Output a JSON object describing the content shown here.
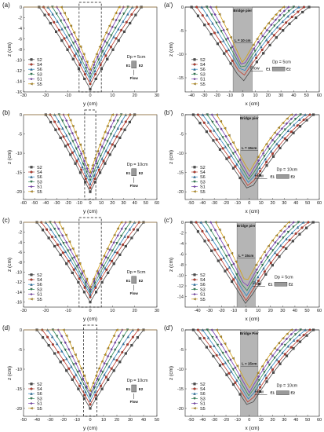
{
  "figure": {
    "series_names": [
      "S2",
      "S4",
      "S6",
      "S3",
      "S1",
      "S5"
    ],
    "series_colors": [
      "#4a4a4a",
      "#c0392b",
      "#2e86c1",
      "#2e8b57",
      "#7a3fb5",
      "#d4a017"
    ],
    "markers": [
      "square",
      "circle",
      "triangle-up",
      "triangle-down",
      "diamond",
      "triangle-left"
    ]
  },
  "chart_data": [
    {
      "panel_label": "(a)",
      "type": "line",
      "view": "front",
      "xlabel": "y (cm)",
      "ylabel": "z (cm)",
      "xlim": [
        -30,
        30
      ],
      "ylim": [
        -16,
        0
      ],
      "xticks": [
        -30,
        -20,
        -10,
        0,
        10,
        20,
        30
      ],
      "yticks": [
        -16,
        -14,
        -12,
        -10,
        -8,
        -6,
        -4,
        -2,
        0
      ],
      "max_depths": [
        15.5,
        14.5,
        13.8,
        13.2,
        12.5,
        11.8
      ],
      "half_widths": [
        23,
        21,
        19,
        17,
        15,
        13
      ],
      "dp_label": "Dp = 5cm",
      "flow_label": "Flow",
      "e_labels": [
        "E1",
        "E2"
      ]
    },
    {
      "panel_label": "(a')",
      "type": "line",
      "view": "side",
      "xlabel": "x (cm)",
      "ylabel": "z (cm)",
      "xlim": [
        -45,
        60
      ],
      "ylim": [
        -18,
        0
      ],
      "xticks": [
        -40,
        -30,
        -20,
        -10,
        0,
        10,
        20,
        30,
        40,
        50,
        60
      ],
      "yticks": [
        -15,
        -10,
        -5,
        0
      ],
      "max_depths": [
        16,
        15,
        14.2,
        13.5,
        12.8,
        12
      ],
      "upstream_lengths": [
        40,
        36,
        32,
        28,
        25,
        21
      ],
      "downstream_lengths": [
        52,
        48,
        44,
        40,
        36,
        32
      ],
      "pier_label": "Bridge pier",
      "l_label": "L = 10 cm",
      "dp_label": "Dp = 5cm",
      "flow_label": "Flow",
      "e_labels": [
        "E1",
        "E2"
      ]
    },
    {
      "panel_label": "(b)",
      "type": "line",
      "view": "front",
      "xlabel": "y (cm)",
      "ylabel": "z (cm)",
      "xlim": [
        -60,
        60
      ],
      "ylim": [
        -22,
        0
      ],
      "xticks": [
        -60,
        -50,
        -40,
        -30,
        -20,
        -10,
        0,
        10,
        20,
        30,
        40,
        50,
        60
      ],
      "yticks": [
        -20,
        -15,
        -10,
        -5,
        0
      ],
      "max_depths": [
        20,
        19,
        18,
        17,
        16,
        15
      ],
      "half_widths": [
        40,
        36,
        32,
        28,
        24,
        20
      ],
      "dp_label": "Dp = 10cm",
      "flow_label": "Flow",
      "e_labels": [
        "E1",
        "E2"
      ]
    },
    {
      "panel_label": "(b')",
      "type": "line",
      "view": "side",
      "xlabel": "x (cm)",
      "ylabel": "z (cm)",
      "xlim": [
        -55,
        60
      ],
      "ylim": [
        -22,
        0
      ],
      "xticks": [
        -50,
        -40,
        -30,
        -20,
        -10,
        0,
        10,
        20,
        30,
        40,
        50,
        60
      ],
      "yticks": [
        -20,
        -15,
        -10,
        -5,
        0
      ],
      "max_depths": [
        20,
        19,
        18,
        17,
        16,
        15
      ],
      "upstream_lengths": [
        48,
        44,
        40,
        36,
        32,
        28
      ],
      "downstream_lengths": [
        55,
        52,
        48,
        44,
        40,
        36
      ],
      "pier_label": "Bridge pier",
      "l_label": "L = 15cm",
      "dp_label": "Dp = 10cm",
      "flow_label": "Flow",
      "e_labels": [
        "E1",
        "E2"
      ]
    },
    {
      "panel_label": "(c)",
      "type": "line",
      "view": "front",
      "xlabel": "y (cm)",
      "ylabel": "z (cm)",
      "xlim": [
        -30,
        30
      ],
      "ylim": [
        -17,
        0
      ],
      "xticks": [
        -30,
        -20,
        -10,
        0,
        10,
        20,
        30
      ],
      "yticks": [
        -16,
        -14,
        -12,
        -10,
        -8,
        -6,
        -4,
        -2,
        0
      ],
      "max_depths": [
        16,
        15,
        14.5,
        14,
        13.5,
        13
      ],
      "half_widths": [
        24,
        22,
        20,
        18,
        16,
        14
      ],
      "dp_label": "Dp = 5cm",
      "flow_label": "Flow",
      "e_labels": [
        "E1",
        "E2"
      ]
    },
    {
      "panel_label": "(c')",
      "type": "line",
      "view": "side",
      "xlabel": "x (cm)",
      "ylabel": "z (cm)",
      "xlim": [
        -50,
        60
      ],
      "ylim": [
        -16,
        0
      ],
      "xticks": [
        -40,
        -30,
        -20,
        -10,
        0,
        10,
        20,
        30,
        40,
        50,
        60
      ],
      "yticks": [
        -14,
        -12,
        -10,
        -8,
        -6,
        -4,
        -2,
        0
      ],
      "max_depths": [
        15.5,
        14.8,
        14,
        13.2,
        12.5,
        11.5
      ],
      "upstream_lengths": [
        45,
        41,
        37,
        33,
        29,
        25
      ],
      "downstream_lengths": [
        55,
        51,
        47,
        43,
        39,
        35
      ],
      "pier_label": "Bridge pier",
      "l_label": "L = 15cm",
      "dp_label": "Dp = 5cm",
      "flow_label": "Flow",
      "e_labels": [
        "E1",
        "E2"
      ]
    },
    {
      "panel_label": "(d)",
      "type": "line",
      "view": "front",
      "xlabel": "y (cm)",
      "ylabel": "z (cm)",
      "xlim": [
        -50,
        50
      ],
      "ylim": [
        -22,
        0
      ],
      "xticks": [
        -50,
        -40,
        -30,
        -20,
        -10,
        0,
        10,
        20,
        30,
        40,
        50
      ],
      "yticks": [
        -20,
        -15,
        -10,
        -5,
        0
      ],
      "max_depths": [
        20,
        19,
        18,
        17,
        16.5,
        15.5
      ],
      "half_widths": [
        40,
        36,
        32,
        28,
        24,
        20
      ],
      "dp_label": "Dp = 10cm",
      "flow_label": "Flow",
      "e_labels": [
        "E1",
        "E2"
      ]
    },
    {
      "panel_label": "(d')",
      "type": "line",
      "view": "side",
      "xlabel": "x (cm)",
      "ylabel": "z (cm)",
      "xlim": [
        -55,
        60
      ],
      "ylim": [
        -22,
        0
      ],
      "xticks": [
        -50,
        -40,
        -30,
        -20,
        -10,
        0,
        10,
        20,
        30,
        40,
        50,
        60
      ],
      "yticks": [
        -20,
        -15,
        -10,
        -5,
        0
      ],
      "max_depths": [
        20,
        19,
        18,
        17,
        16,
        15
      ],
      "upstream_lengths": [
        48,
        44,
        40,
        36,
        32,
        28
      ],
      "downstream_lengths": [
        55,
        52,
        48,
        44,
        40,
        36
      ],
      "pier_label": "Bridge Pier",
      "l_label": "L = 15cm",
      "dp_label": "Dp = 10cm",
      "flow_label": "Flow",
      "e_labels": [
        "E1",
        "E2"
      ]
    }
  ]
}
